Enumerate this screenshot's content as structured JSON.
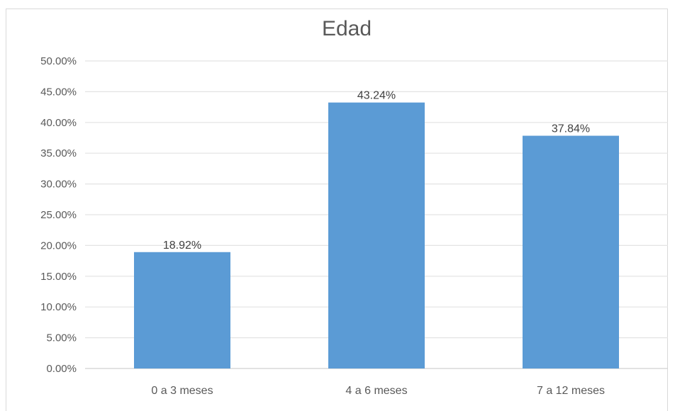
{
  "chart_data": {
    "type": "bar",
    "title": "Edad",
    "categories": [
      "0 a 3 meses",
      "4 a 6 meses",
      "7 a 12 meses"
    ],
    "values": [
      18.92,
      43.24,
      37.84
    ],
    "data_labels": [
      "18.92%",
      "43.24%",
      "37.84%"
    ],
    "yticks": [
      "0.00%",
      "5.00%",
      "10.00%",
      "15.00%",
      "20.00%",
      "25.00%",
      "30.00%",
      "35.00%",
      "40.00%",
      "45.00%",
      "50.00%"
    ],
    "ylim": [
      0,
      50
    ],
    "ystep": 5,
    "grid": true,
    "legend": "none",
    "bar_color": "#5b9bd5",
    "xlabel": "",
    "ylabel": ""
  }
}
